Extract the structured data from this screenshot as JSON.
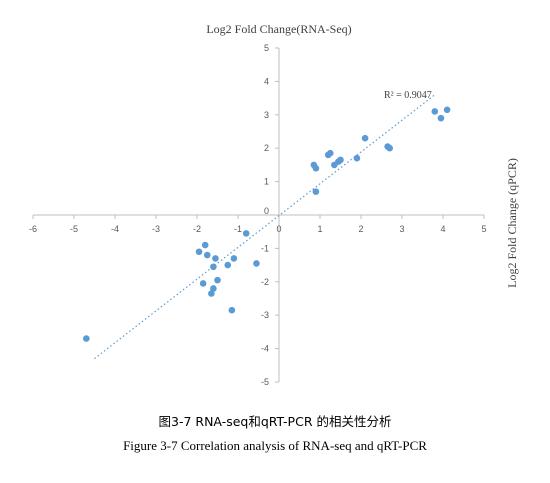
{
  "chart_data": {
    "type": "scatter",
    "xlabel": "Log2 Fold Change(RNA-Seq)",
    "ylabel": "Log2 Fold Change (qPCR)",
    "xlim": [
      -6,
      5
    ],
    "ylim": [
      -5,
      5
    ],
    "x_ticks": [
      -6,
      -5,
      -4,
      -3,
      -2,
      -1,
      0,
      1,
      2,
      3,
      4,
      5
    ],
    "y_ticks": [
      -5,
      -4,
      -3,
      -2,
      -1,
      0,
      1,
      2,
      3,
      4,
      5
    ],
    "grid": false,
    "legend": "none",
    "marker_color": "#5B9BD5",
    "trendline": {
      "type": "linear",
      "style": "dotted",
      "from": [
        -4.5,
        -4.3
      ],
      "to": [
        3.8,
        3.6
      ]
    },
    "annotation": "R² = 0.9047",
    "points": [
      {
        "x": -4.7,
        "y": -3.7
      },
      {
        "x": -1.95,
        "y": -1.1
      },
      {
        "x": -1.8,
        "y": -0.9
      },
      {
        "x": -1.75,
        "y": -1.2
      },
      {
        "x": -1.55,
        "y": -1.3
      },
      {
        "x": -1.6,
        "y": -1.55
      },
      {
        "x": -1.85,
        "y": -2.05
      },
      {
        "x": -1.5,
        "y": -1.95
      },
      {
        "x": -1.6,
        "y": -2.2
      },
      {
        "x": -1.65,
        "y": -2.35
      },
      {
        "x": -1.25,
        "y": -1.5
      },
      {
        "x": -1.1,
        "y": -1.3
      },
      {
        "x": -0.8,
        "y": -0.55
      },
      {
        "x": -0.55,
        "y": -1.45
      },
      {
        "x": -1.15,
        "y": -2.85
      },
      {
        "x": 0.85,
        "y": 1.5
      },
      {
        "x": 0.9,
        "y": 1.4
      },
      {
        "x": 0.9,
        "y": 0.7
      },
      {
        "x": 1.2,
        "y": 1.8
      },
      {
        "x": 1.25,
        "y": 1.85
      },
      {
        "x": 1.35,
        "y": 1.5
      },
      {
        "x": 1.45,
        "y": 1.6
      },
      {
        "x": 1.5,
        "y": 1.65
      },
      {
        "x": 1.9,
        "y": 1.7
      },
      {
        "x": 2.1,
        "y": 2.3
      },
      {
        "x": 2.65,
        "y": 2.05
      },
      {
        "x": 2.7,
        "y": 2.0
      },
      {
        "x": 3.8,
        "y": 3.1
      },
      {
        "x": 3.95,
        "y": 2.9
      },
      {
        "x": 4.1,
        "y": 3.15
      }
    ]
  },
  "caption": {
    "chinese": "图3-7 RNA-seq和qRT-PCR 的相关性分析",
    "english": "Figure 3-7 Correlation analysis of RNA-seq and qRT-PCR"
  }
}
